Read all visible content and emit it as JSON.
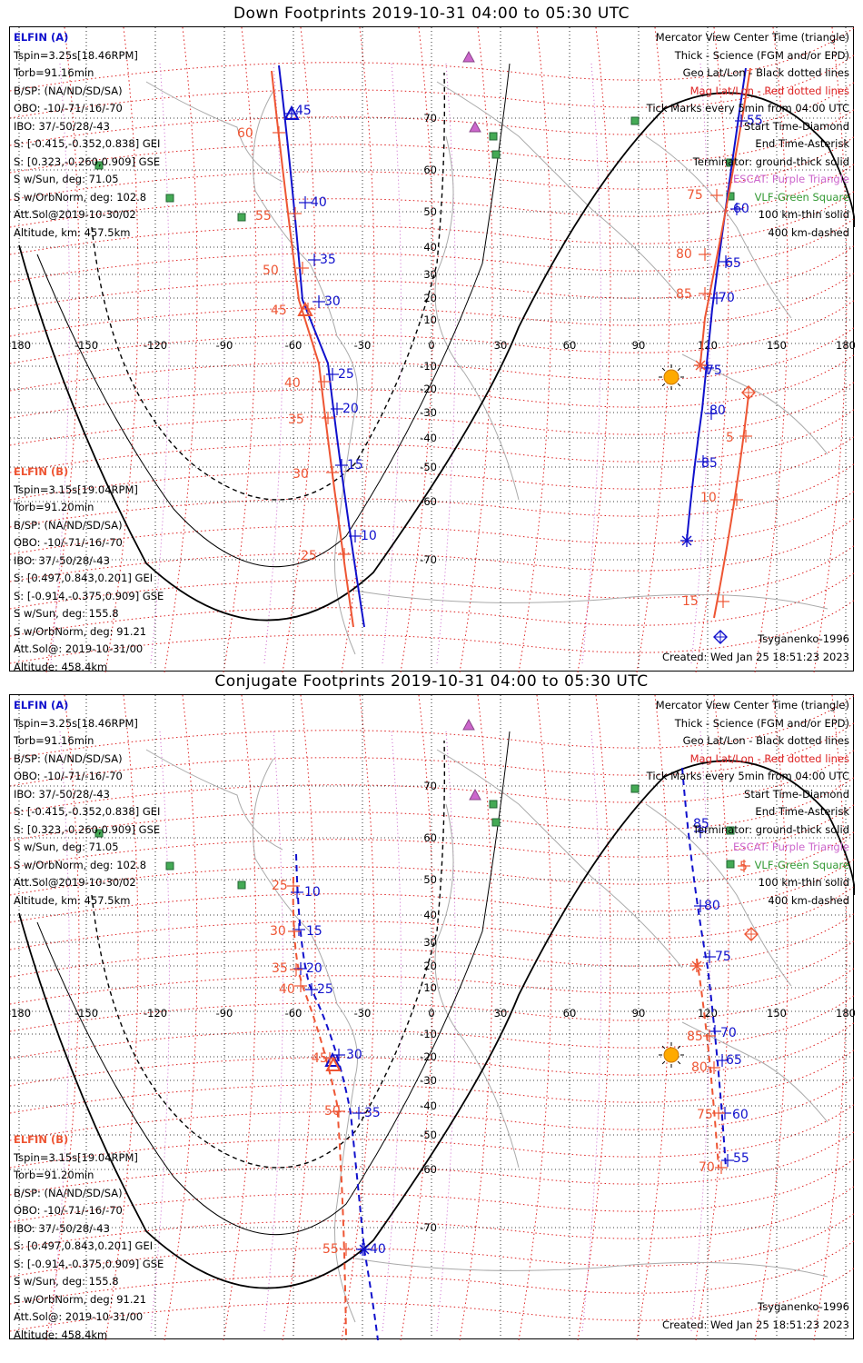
{
  "panels": [
    {
      "id": "down",
      "title": "Down Footprints 2019-10-31 04:00 to 05:30 UTC",
      "a_lines": [
        "ELFIN (A)",
        "Tspin=3.25s[18.46RPM]",
        "Torb=91.16min",
        "B/SP: (NA/ND/SD/SA)",
        "OBO: -10/-71/-16/-70",
        "IBO: 37/-50/28/-43",
        "S: [-0.415,-0.352,0.838] GEI",
        "S: [0.323,-0.260,0.909] GSE",
        "S w/Sun, deg: 71.05",
        "S w/OrbNorm, deg: 102.8",
        "Att.Sol@2019-10-30/02",
        "Altitude, km: 457.5km"
      ],
      "b_lines": [
        "ELFIN (B)",
        "Tspin=3.15s[19.04RPM]",
        "Torb=91.20min",
        "B/SP: (NA/ND/SD/SA)",
        "OBO: -10/-71/-16/-70",
        "IBO: 37/-50/28/-43",
        "S: [0.497,0.843,0.201] GEI",
        "S: [-0.914,-0.375,0.909] GSE",
        "S w/Sun, deg: 155.8",
        "S w/OrbNorm, deg: 91.21",
        "Att.Sol@: 2019-10-31/00",
        "Altitude: 458.4km"
      ],
      "legend": [
        "Mercator View Center Time (triangle)",
        "Thick - Science (FGM and/or EPD)",
        "Geo Lat/Lon - Black dotted lines",
        "Mag Lat/Lon - Red dotted lines",
        "Tick Marks every 5min from 04:00 UTC",
        "Start Time-Diamond",
        "End Time-Asterisk",
        "Terminator: ground-thick solid",
        "ESCAT: Purple Triangle",
        "VLF-Green Square",
        "100 km-thin solid",
        "400 km-dashed"
      ],
      "model": "Tsyganenko-1996",
      "created": "Created: Wed Jan 25 18:51:23 2023"
    },
    {
      "id": "conj",
      "title": "Conjugate Footprints 2019-10-31 04:00 to 05:30 UTC",
      "a_lines": [
        "ELFIN (A)",
        "Tspin=3.25s[18.46RPM]",
        "Torb=91.16min",
        "B/SP: (NA/ND/SD/SA)",
        "OBO: -10/-71/-16/-70",
        "IBO: 37/-50/28/-43",
        "S: [-0.415,-0.352,0.838] GEI",
        "S: [0.323,-0.260,0.909] GSE",
        "S w/Sun, deg: 71.05",
        "S w/OrbNorm, deg: 102.8",
        "Att.Sol@2019-10-30/02",
        "Altitude, km: 457.5km"
      ],
      "b_lines": [
        "ELFIN (B)",
        "Tspin=3.15s[19.04RPM]",
        "Torb=91.20min",
        "B/SP: (NA/ND/SD/SA)",
        "OBO: -10/-71/-16/-70",
        "IBO: 37/-50/28/-43",
        "S: [0.497,0.843,0.201] GEI",
        "S: [-0.914,-0.375,0.909] GSE",
        "S w/Sun, deg: 155.8",
        "S w/OrbNorm, deg: 91.21",
        "Att.Sol@: 2019-10-31/00",
        "Altitude: 458.4km"
      ],
      "legend": [
        "Mercator View Center Time (triangle)",
        "Thick - Science (FGM and/or EPD)",
        "Geo Lat/Lon - Black dotted lines",
        "Mag Lat/Lon - Red dotted lines",
        "Tick Marks every 5min from 04:00 UTC",
        "Start Time-Diamond",
        "End Time-Asterisk",
        "Terminator: ground-thick solid",
        "ESCAT: Purple Triangle",
        "VLF-Green Square",
        "100 km-thin solid",
        "400 km-dashed"
      ],
      "model": "Tsyganenko-1996",
      "created": "Created: Wed Jan 25 18:51:23 2023"
    }
  ],
  "lon_ticks": [
    "-180",
    "-150",
    "-120",
    "-90",
    "-60",
    "-30",
    "0",
    "30",
    "60",
    "90",
    "120",
    "150",
    "180"
  ],
  "lat_ticks": [
    "70",
    "60",
    "50",
    "40",
    "30",
    "20",
    "10",
    "-10",
    "-20",
    "-30",
    "-40",
    "-50",
    "-60",
    "-70"
  ],
  "colors": {
    "elfin_a": "#1010cc",
    "elfin_b": "#ee5533",
    "mag_grid": "#dd2222",
    "geo_grid": "#000000",
    "escat": "#cc66cc",
    "vlf": "#339933",
    "sun": "#ffaa00"
  },
  "tick_labels": {
    "down_a": [
      "45",
      "40",
      "35",
      "30",
      "25",
      "20",
      "15",
      "10",
      "55",
      "60",
      "65",
      "70",
      "75",
      "80",
      "85"
    ],
    "down_b": [
      "60",
      "55",
      "50",
      "45",
      "40",
      "35",
      "30",
      "25",
      "75",
      "80",
      "85",
      "5",
      "10",
      "15"
    ],
    "conj_a": [
      "10",
      "15",
      "20",
      "25",
      "30",
      "35",
      "40",
      "85",
      "80",
      "75",
      "70",
      "65",
      "60",
      "55"
    ],
    "conj_b": [
      "25",
      "30",
      "35",
      "40",
      "45",
      "50",
      "55",
      "5",
      "85",
      "80",
      "75",
      "70"
    ]
  }
}
